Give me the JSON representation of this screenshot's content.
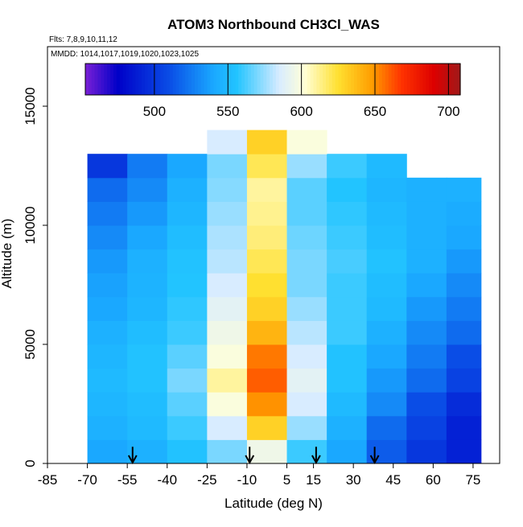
{
  "chart_data": {
    "type": "heatmap",
    "title": "ATOM3 Northbound CH3Cl_WAS",
    "subtitle_flights": "Flts: 7,8,9,10,11,12",
    "subtitle_dates": "MMDD: 1014,1017,1019,1020,1023,1025",
    "xlabel": "Latitude (deg N)",
    "ylabel": "Altitude (m)",
    "xlim": [
      -85,
      85
    ],
    "ylim": [
      0,
      17500
    ],
    "x_ticks": [
      "-85",
      "-70",
      "-55",
      "-40",
      "-25",
      "-10",
      "5",
      "15",
      "30",
      "45",
      "60",
      "75"
    ],
    "x_tick_values": [
      -85,
      -70,
      -55,
      -40,
      -25,
      -10,
      5,
      15,
      30,
      45,
      60,
      75
    ],
    "y_ticks": [
      "0",
      "5000",
      "10000",
      "15000"
    ],
    "y_tick_values": [
      0,
      5000,
      10000,
      15000
    ],
    "colorbar": {
      "min": 453,
      "max": 708,
      "tick_labels": [
        "500",
        "550",
        "600",
        "650",
        "700"
      ],
      "tick_values": [
        500,
        550,
        600,
        650,
        700
      ],
      "colors": [
        "#7a1fd6",
        "#0000c8",
        "#0a4de6",
        "#1aa8ff",
        "#22c4ff",
        "#d8ecff",
        "#ffffd8",
        "#ffe030",
        "#ff9d00",
        "#ff3300",
        "#dd0000",
        "#a01a1a"
      ],
      "color_stops": [
        453,
        475,
        510,
        540,
        556,
        585,
        602,
        625,
        648,
        668,
        690,
        708
      ]
    },
    "altitude_bins": [
      0,
      1000,
      2000,
      3000,
      4000,
      5000,
      6000,
      7000,
      8000,
      9000,
      10000,
      11000,
      12000,
      13000
    ],
    "latitude_bins": [
      -70,
      -55,
      -40,
      -25,
      -10,
      5,
      20,
      35,
      50,
      65,
      78
    ],
    "values": [
      [
        540,
        545,
        555,
        570,
        595,
        560,
        540,
        515,
        500,
        490
      ],
      [
        545,
        550,
        560,
        585,
        630,
        575,
        545,
        520,
        505,
        490
      ],
      [
        548,
        552,
        565,
        600,
        650,
        585,
        550,
        530,
        510,
        495
      ],
      [
        550,
        555,
        570,
        610,
        660,
        590,
        555,
        535,
        520,
        505
      ],
      [
        548,
        555,
        565,
        600,
        655,
        585,
        555,
        540,
        525,
        510
      ],
      [
        545,
        552,
        560,
        595,
        640,
        580,
        560,
        545,
        530,
        520
      ],
      [
        540,
        548,
        558,
        590,
        630,
        575,
        560,
        550,
        535,
        525
      ],
      [
        538,
        546,
        556,
        585,
        625,
        570,
        560,
        552,
        540,
        530
      ],
      [
        535,
        545,
        555,
        580,
        620,
        570,
        562,
        555,
        545,
        535
      ],
      [
        530,
        540,
        552,
        578,
        615,
        568,
        560,
        552,
        545,
        540
      ],
      [
        525,
        535,
        548,
        575,
        612,
        565,
        558,
        550,
        545,
        542
      ],
      [
        520,
        530,
        545,
        572,
        610,
        565,
        556,
        548,
        545,
        545
      ],
      [
        500,
        525,
        540,
        570,
        620,
        575,
        560,
        550,
        null,
        null
      ],
      [
        null,
        null,
        null,
        585,
        630,
        600,
        null,
        null,
        null,
        null
      ]
    ],
    "arrow_latitudes": [
      -53,
      -9,
      16,
      38
    ],
    "arrow_top_altitude": 700
  }
}
